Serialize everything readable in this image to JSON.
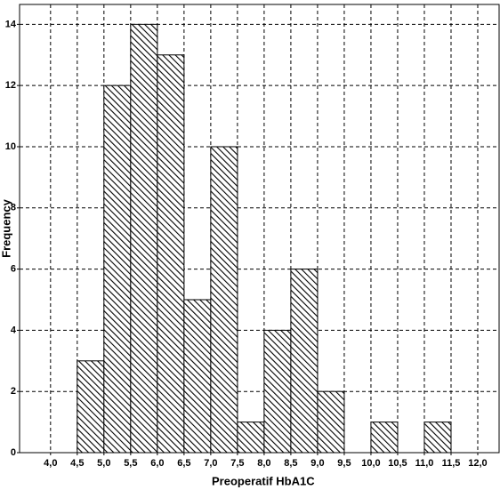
{
  "chart_data": {
    "type": "histogram",
    "x_label": "Preoperatif HbA1C",
    "y_label": "Frequency",
    "bins": [
      4.5,
      5.0,
      5.5,
      6.0,
      6.5,
      7.0,
      7.5,
      8.0,
      8.5,
      9.0,
      9.5,
      10.0,
      10.5,
      11.0,
      11.5
    ],
    "counts": [
      3,
      12,
      14,
      13,
      5,
      10,
      1,
      4,
      6,
      2,
      0,
      1,
      0,
      1
    ],
    "color": "#000000",
    "xlim": [
      3.42,
      12.4
    ],
    "ylim": [
      0,
      14.65
    ],
    "xticks": [
      {
        "value": 4.0,
        "label": "4,0"
      },
      {
        "value": 4.5,
        "label": "4,5"
      },
      {
        "value": 5.0,
        "label": "5,0"
      },
      {
        "value": 5.5,
        "label": "5,5"
      },
      {
        "value": 6.0,
        "label": "6,0"
      },
      {
        "value": 6.5,
        "label": "6,5"
      },
      {
        "value": 7.0,
        "label": "7,0"
      },
      {
        "value": 7.5,
        "label": "7,5"
      },
      {
        "value": 8.0,
        "label": "8,0"
      },
      {
        "value": 8.5,
        "label": "8,5"
      },
      {
        "value": 9.0,
        "label": "9,0"
      },
      {
        "value": 9.5,
        "label": "9,5"
      },
      {
        "value": 10.0,
        "label": "10,0"
      },
      {
        "value": 10.5,
        "label": "10,5"
      },
      {
        "value": 11.0,
        "label": "11,0"
      },
      {
        "value": 11.5,
        "label": "11,5"
      },
      {
        "value": 12.0,
        "label": "12,0"
      }
    ],
    "yticks": [
      0,
      2,
      4,
      6,
      8,
      10,
      12,
      14
    ],
    "grid": true
  }
}
